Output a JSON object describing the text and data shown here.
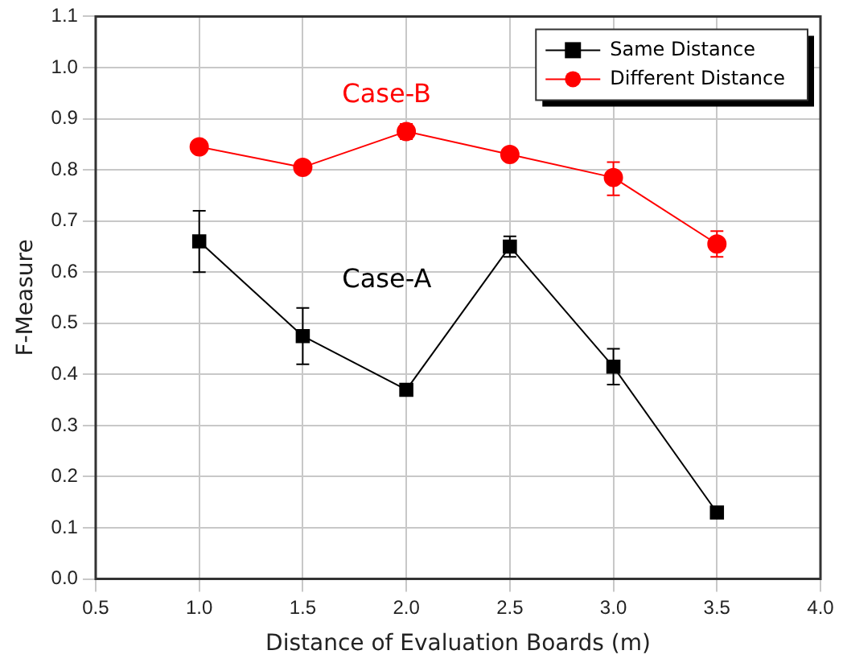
{
  "chart_data": {
    "type": "line",
    "xlabel": "Distance of Evaluation Boards (m)",
    "ylabel": "F-Measure",
    "x": [
      1.0,
      1.5,
      2.0,
      2.5,
      3.0,
      3.5
    ],
    "series": [
      {
        "name": "Same Distance",
        "color": "#000000",
        "marker": "square",
        "values": [
          0.66,
          0.475,
          0.37,
          0.65,
          0.415,
          0.13
        ],
        "errors": [
          [
            0.6,
            0.72
          ],
          [
            0.42,
            0.53
          ],
          null,
          [
            0.63,
            0.67
          ],
          [
            0.38,
            0.45
          ],
          null
        ]
      },
      {
        "name": "Different Distance",
        "color": "#ff0000",
        "marker": "circle",
        "values": [
          0.845,
          0.805,
          0.875,
          0.83,
          0.785,
          0.655
        ],
        "errors": [
          null,
          null,
          [
            0.86,
            0.89
          ],
          null,
          [
            0.75,
            0.815
          ],
          [
            0.63,
            0.68
          ]
        ]
      }
    ],
    "xlim": [
      0.5,
      4.0
    ],
    "xticks": [
      {
        "value": 0.5,
        "label": "0.5"
      },
      {
        "value": 1.0,
        "label": "1.0"
      },
      {
        "value": 1.5,
        "label": "1.5"
      },
      {
        "value": 2.0,
        "label": "2.0"
      },
      {
        "value": 2.5,
        "label": "2.5"
      },
      {
        "value": 3.0,
        "label": "3.0"
      },
      {
        "value": 3.5,
        "label": "3.5"
      },
      {
        "value": 4.0,
        "label": "4.0"
      }
    ],
    "ylim": [
      0,
      1.1
    ],
    "yticks": [
      {
        "value": 0,
        "label": "0.0"
      },
      {
        "value": 0.1,
        "label": "0.1"
      },
      {
        "value": 0.2,
        "label": "0.2"
      },
      {
        "value": 0.3,
        "label": "0.3"
      },
      {
        "value": 0.4,
        "label": "0.4"
      },
      {
        "value": 0.5,
        "label": "0.5"
      },
      {
        "value": 0.6,
        "label": "0.6"
      },
      {
        "value": 0.7,
        "label": "0.7"
      },
      {
        "value": 0.8,
        "label": "0.8"
      },
      {
        "value": 0.9,
        "label": "0.9"
      },
      {
        "value": 1.0,
        "label": "1.0"
      },
      {
        "value": 1.1,
        "label": "1.1"
      }
    ],
    "grid": true,
    "legend": "top right",
    "annotations": [
      "Case-A",
      "Case-B"
    ]
  }
}
